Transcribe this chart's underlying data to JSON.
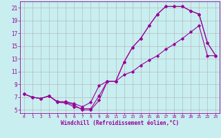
{
  "xlabel": "Windchill (Refroidissement éolien,°C)",
  "bg_color": "#c8eef0",
  "line_color": "#990099",
  "grid_color": "#b0b0b0",
  "xlim": [
    -0.5,
    23.5
  ],
  "ylim": [
    4.5,
    22
  ],
  "xticks": [
    0,
    1,
    2,
    3,
    4,
    5,
    6,
    7,
    8,
    9,
    10,
    11,
    12,
    13,
    14,
    15,
    16,
    17,
    18,
    19,
    20,
    21,
    22,
    23
  ],
  "yticks": [
    5,
    7,
    9,
    11,
    13,
    15,
    17,
    19,
    21
  ],
  "curve1_x": [
    0,
    1,
    2,
    3,
    4,
    5,
    6,
    7,
    8,
    9,
    10,
    11,
    12,
    13,
    14,
    15,
    16,
    17,
    18,
    19,
    20,
    21,
    22,
    23
  ],
  "curve1_y": [
    7.5,
    7.0,
    6.8,
    7.2,
    6.3,
    6.2,
    5.8,
    5.0,
    5.0,
    6.5,
    9.5,
    9.5,
    12.5,
    14.8,
    16.2,
    18.2,
    20.0,
    21.2,
    21.2,
    21.2,
    20.5,
    20.0,
    15.5,
    13.5
  ],
  "curve2_x": [
    0,
    1,
    2,
    3,
    4,
    5,
    6,
    7,
    8,
    9,
    10,
    11,
    12,
    13,
    14,
    15,
    16,
    17,
    18,
    19,
    20,
    21,
    22,
    23
  ],
  "curve2_y": [
    7.5,
    7.0,
    6.8,
    7.2,
    6.3,
    6.3,
    6.0,
    5.5,
    6.2,
    8.8,
    9.5,
    9.5,
    12.5,
    14.8,
    16.2,
    18.2,
    20.0,
    21.2,
    21.2,
    21.2,
    20.5,
    20.0,
    15.5,
    13.5
  ],
  "curve3_x": [
    0,
    1,
    2,
    3,
    4,
    5,
    6,
    7,
    8,
    9,
    10,
    11,
    12,
    13,
    14,
    15,
    16,
    17,
    18,
    19,
    20,
    21,
    22,
    23
  ],
  "curve3_y": [
    7.5,
    7.0,
    6.8,
    7.2,
    6.2,
    6.1,
    5.5,
    5.2,
    5.2,
    7.2,
    9.5,
    9.5,
    10.5,
    11.0,
    12.0,
    12.8,
    13.5,
    14.5,
    15.3,
    16.2,
    17.2,
    18.2,
    13.5,
    13.5
  ]
}
